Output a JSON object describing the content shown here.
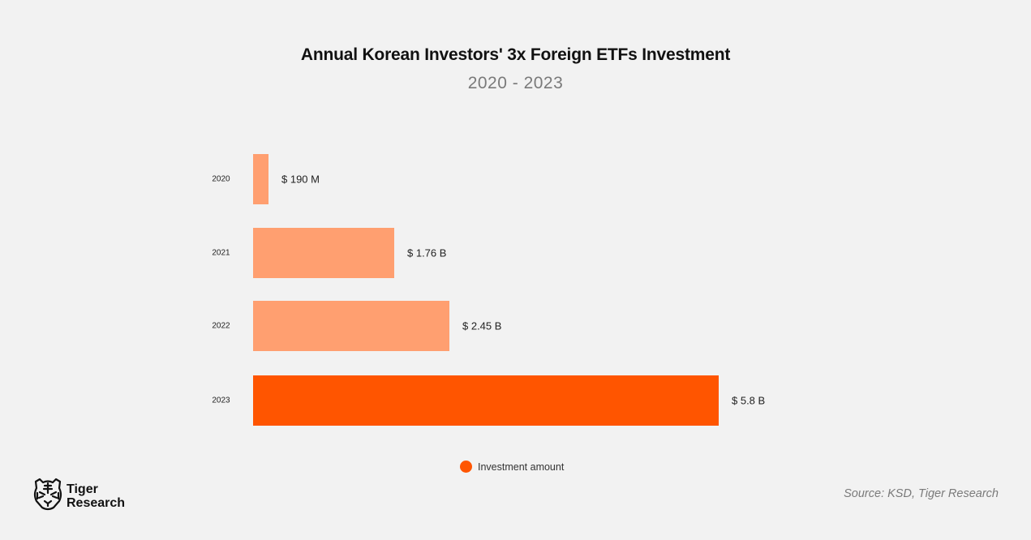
{
  "header": {
    "title": "Annual Korean Investors' 3x Foreign ETFs Investment",
    "subtitle": "2020 - 2023"
  },
  "legend": {
    "label": "Investment amount",
    "color": "#ff5500"
  },
  "footer": {
    "logo_line1": "Tiger",
    "logo_line2": "Research",
    "logo_icon": "tiger-head-icon",
    "source": "Source: KSD, Tiger Research"
  },
  "colors": {
    "background": "#f2f2f2",
    "bar_light": "#ff9f70",
    "bar_highlight": "#ff5500"
  },
  "bars": [
    {
      "year": "2020",
      "label": "$ 190 M",
      "value_b": 0.19,
      "color": "#ff9f70"
    },
    {
      "year": "2021",
      "label": "$ 1.76 B",
      "value_b": 1.76,
      "color": "#ff9f70"
    },
    {
      "year": "2022",
      "label": "$ 2.45 B",
      "value_b": 2.45,
      "color": "#ff9f70"
    },
    {
      "year": "2023",
      "label": "$ 5.8 B",
      "value_b": 5.8,
      "color": "#ff5500"
    }
  ],
  "chart_data": {
    "type": "bar",
    "orientation": "horizontal",
    "title": "Annual Korean Investors' 3x Foreign ETFs Investment",
    "subtitle": "2020 - 2023",
    "categories": [
      "2020",
      "2021",
      "2022",
      "2023"
    ],
    "values": [
      0.19,
      1.76,
      2.45,
      5.8
    ],
    "value_labels": [
      "$ 190 M",
      "$ 1.76 B",
      "$ 2.45 B",
      "$ 5.8 B"
    ],
    "unit": "USD billions",
    "series": [
      {
        "name": "Investment amount",
        "values": [
          0.19,
          1.76,
          2.45,
          5.8
        ]
      }
    ],
    "xlabel": "",
    "ylabel": "",
    "xlim": [
      0,
      5.8
    ],
    "grid": false,
    "legend_position": "bottom-center",
    "source": "Source: KSD, Tiger Research"
  }
}
